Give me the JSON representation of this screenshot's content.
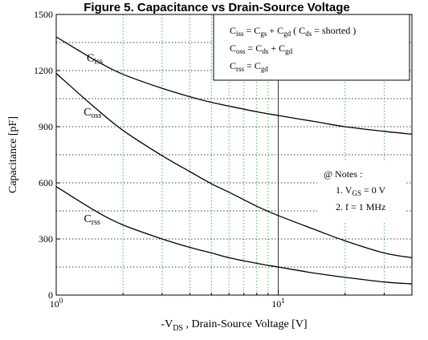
{
  "chart_data": {
    "type": "line",
    "title": "Figure 5. Capacitance vs Drain-Source Voltage",
    "xscale": "log",
    "xlim": [
      1,
      40
    ],
    "ylim": [
      0,
      1500
    ],
    "xlabel": {
      "main": "-V",
      "sub": "DS",
      "rest": " , Drain-Source Voltage [V]"
    },
    "ylabel": "Capacitance  [pF]",
    "xticks": [
      {
        "base": "10",
        "exp": "0",
        "value": 1
      },
      {
        "base": "10",
        "exp": "1",
        "value": 10
      }
    ],
    "yticks": [
      "0",
      "300",
      "600",
      "900",
      "1200",
      "1500"
    ],
    "ytick_values": [
      0,
      300,
      600,
      900,
      1200,
      1500
    ],
    "grid": {
      "x_minor_dotted_green": true,
      "y_dotted_black": true
    },
    "series": [
      {
        "name": "C_iss",
        "label_main": "C",
        "label_sub": "iss",
        "x": [
          1,
          1.5,
          2,
          3,
          4,
          5,
          6,
          8,
          10,
          15,
          20,
          30,
          40
        ],
        "y": [
          1380,
          1255,
          1180,
          1105,
          1060,
          1030,
          1010,
          980,
          960,
          925,
          900,
          875,
          860
        ]
      },
      {
        "name": "C_oss",
        "label_main": "C",
        "label_sub": "oss",
        "x": [
          1,
          1.5,
          2,
          3,
          4,
          5,
          6,
          8,
          10,
          15,
          20,
          30,
          40
        ],
        "y": [
          1185,
          1000,
          880,
          745,
          660,
          595,
          550,
          475,
          425,
          345,
          290,
          225,
          200
        ]
      },
      {
        "name": "C_rss",
        "label_main": "C",
        "label_sub": "rss",
        "x": [
          1,
          1.5,
          2,
          3,
          4,
          5,
          6,
          8,
          10,
          15,
          20,
          30,
          40
        ],
        "y": [
          580,
          450,
          375,
          300,
          255,
          225,
          200,
          170,
          150,
          115,
          95,
          70,
          60
        ]
      }
    ],
    "legend_box": {
      "position": "top-right",
      "lines": [
        [
          [
            "C",
            ""
          ],
          [
            "iss",
            "sub"
          ],
          [
            " = C",
            ""
          ],
          [
            "gs",
            "sub"
          ],
          [
            " + C",
            ""
          ],
          [
            "gd",
            "sub"
          ],
          [
            "  ( C",
            ""
          ],
          [
            "ds",
            "sub"
          ],
          [
            " = shorted )",
            ""
          ]
        ],
        [
          [
            "C",
            ""
          ],
          [
            "oss",
            "sub"
          ],
          [
            " = C",
            ""
          ],
          [
            "ds",
            "sub"
          ],
          [
            " + C",
            ""
          ],
          [
            "gd",
            "sub"
          ]
        ],
        [
          [
            "C",
            ""
          ],
          [
            "rss",
            "sub"
          ],
          [
            " = C",
            ""
          ],
          [
            "gd",
            "sub"
          ]
        ]
      ]
    },
    "notes": {
      "header": "@ Notes :",
      "items": [
        [
          [
            "1. V",
            ""
          ],
          [
            "GS",
            "sub"
          ],
          [
            " = 0 V",
            ""
          ]
        ],
        [
          [
            "2. f = 1 MHz",
            ""
          ]
        ]
      ]
    },
    "annotations": [
      {
        "type": "vertical_line",
        "x": 10
      }
    ]
  }
}
